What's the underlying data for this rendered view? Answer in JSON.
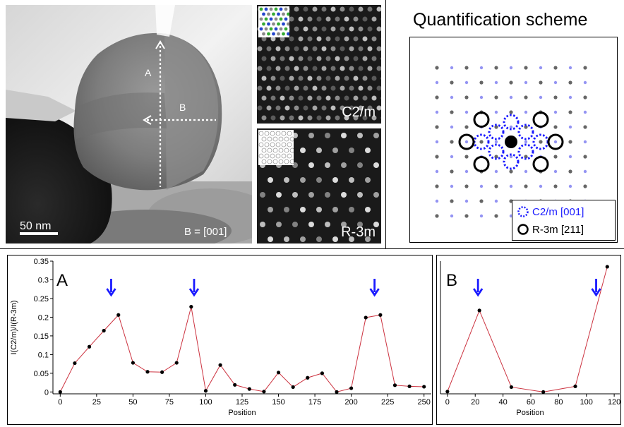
{
  "tem_panel": {
    "line_a_label": "A",
    "line_b_label": "B",
    "scale_bar_label": "50 nm",
    "zone_axis_label": "B = [001]"
  },
  "fft_panels": {
    "top_label": "C2/m",
    "bottom_label": "R-3m"
  },
  "scheme_panel": {
    "title": "Quantification scheme",
    "legend": [
      {
        "label": "C2/m [001]",
        "color": "#1a1aff",
        "style": "dotted-circle"
      },
      {
        "label": "R-3m [211]",
        "color": "#000000",
        "style": "solid-circle"
      }
    ]
  },
  "colors": {
    "line": "#cc3340",
    "marker": "#000000",
    "arrow": "#1a1aff",
    "c2m": "#1a1aff",
    "r3m": "#000000"
  },
  "chart_data": [
    {
      "type": "line",
      "panel_label": "A",
      "xlabel": "Position",
      "ylabel": "I(C2/m)/I(R-3m)",
      "xlim": [
        -5,
        255
      ],
      "ylim": [
        -0.005,
        0.35
      ],
      "xticks": [
        0,
        25,
        50,
        75,
        100,
        125,
        150,
        175,
        200,
        225,
        250
      ],
      "yticks": [
        0,
        0.05,
        0.1,
        0.15,
        0.2,
        0.25,
        0.3,
        0.35
      ],
      "ytick_labels": [
        "0",
        "0.05",
        "0.1",
        "0.15",
        "0.2",
        "0.25",
        "0.3",
        "0.35"
      ],
      "x": [
        0,
        10,
        20,
        30,
        40,
        50,
        60,
        70,
        80,
        90,
        100,
        110,
        120,
        130,
        140,
        150,
        160,
        170,
        180,
        190,
        200,
        210,
        220,
        230,
        240,
        250
      ],
      "y": [
        0.0,
        0.077,
        0.121,
        0.164,
        0.206,
        0.078,
        0.054,
        0.053,
        0.078,
        0.228,
        0.003,
        0.072,
        0.019,
        0.008,
        0.001,
        0.052,
        0.013,
        0.038,
        0.05,
        0.0,
        0.01,
        0.199,
        0.206,
        0.018,
        0.015,
        0.014
      ],
      "arrows_at_x": [
        35,
        92,
        216
      ],
      "grid": false
    },
    {
      "type": "line",
      "panel_label": "B",
      "xlabel": "Position",
      "ylabel": "",
      "xlim": [
        -5,
        124
      ],
      "ylim": [
        -0.005,
        0.35
      ],
      "xticks": [
        0,
        20,
        40,
        60,
        80,
        100,
        120
      ],
      "x": [
        0,
        23,
        46,
        69,
        92,
        115
      ],
      "y": [
        0.001,
        0.218,
        0.013,
        0.0,
        0.015,
        0.335
      ],
      "arrows_at_x": [
        22,
        107
      ],
      "grid": false
    }
  ]
}
